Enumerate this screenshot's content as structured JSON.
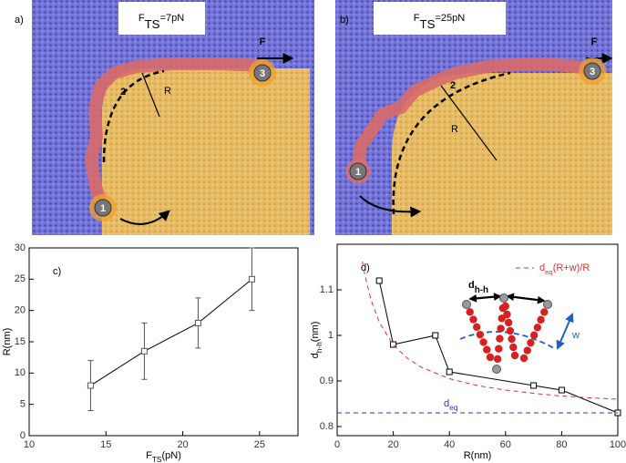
{
  "panels": [
    {
      "label": "a)",
      "title": [
        "F",
        "TS",
        "=7pN"
      ],
      "force": "F",
      "points": [
        "1",
        "2",
        "3"
      ],
      "radius": "R"
    },
    {
      "label": "b)",
      "title": [
        "F",
        "TS",
        "=25pN"
      ],
      "force": "F",
      "points": [
        "1",
        "2",
        "3"
      ],
      "radius": "R"
    }
  ],
  "chart_data": [
    {
      "type": "errorbar",
      "label": "c)",
      "x": [
        14,
        17.5,
        21,
        24.5
      ],
      "series": [
        {
          "color": "#555555",
          "values": [
            8,
            13.5,
            18,
            25
          ],
          "errors": [
            4,
            4.5,
            4,
            5
          ]
        }
      ],
      "xlim": [
        10,
        27.5
      ],
      "ylim": [
        0,
        30
      ],
      "xticks": [
        10,
        15,
        20,
        25
      ],
      "yticks": [
        0,
        5,
        10,
        15,
        20,
        25,
        30
      ],
      "xlabel": [
        "F",
        "TS",
        "(pN)"
      ],
      "ylabel": "R(nm)"
    },
    {
      "type": "line",
      "label": "d)",
      "series": [
        {
          "color": "#000000",
          "marker": "square",
          "x": [
            15,
            20,
            35,
            40,
            70,
            80,
            100
          ],
          "values": [
            1.12,
            0.98,
            1.0,
            0.92,
            0.89,
            0.88,
            0.83
          ]
        },
        {
          "name": [
            "d",
            "eq",
            "(R+w)/R"
          ],
          "color": "#e03030",
          "dashed": true,
          "x": [
            9,
            10,
            12,
            15,
            20,
            25,
            30,
            40,
            50,
            60,
            70,
            80,
            90,
            100
          ],
          "values": [
            1.162,
            1.129,
            1.079,
            1.029,
            0.979,
            0.95,
            0.93,
            0.905,
            0.89,
            0.88,
            0.873,
            0.867,
            0.863,
            0.86
          ]
        },
        {
          "color": "#3030c0",
          "dashed": true,
          "x": [
            0,
            100
          ],
          "values": [
            0.83,
            0.83
          ]
        }
      ],
      "annotation": [
        "d",
        "eq"
      ],
      "xlim": [
        0,
        100
      ],
      "ylim": [
        0.78,
        1.2
      ],
      "xticks": [
        0,
        20,
        40,
        60,
        80,
        100
      ],
      "yticks": [
        0.8,
        0.9,
        1,
        1.1
      ],
      "xlabel": "R(nm)",
      "ylabel": [
        "d",
        "h-h",
        "(nm)"
      ],
      "legend": "upper right",
      "inset": {
        "label": [
          "d",
          "h-h"
        ],
        "width": "w"
      }
    }
  ]
}
